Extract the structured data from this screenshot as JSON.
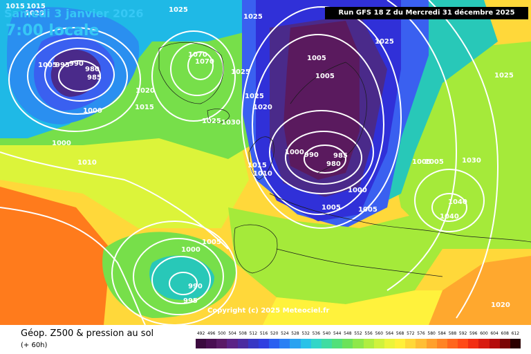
{
  "header": {
    "date_line": "Samedi 3 janvier 2026",
    "time_line": "7:00 locale",
    "run_info": "Run GFS 18 Z du Mercredi 31 décembre 2025"
  },
  "map": {
    "copyright": "Copyright (c) 2025 Meteociel.fr",
    "pressure_labels": [
      "1015",
      "1015",
      "1025",
      "1025",
      "1020",
      "1005",
      "995",
      "990",
      "980",
      "985",
      "1000",
      "1000",
      "1010",
      "1070",
      "1070",
      "1015",
      "1025",
      "1025",
      "1020",
      "1030",
      "1025",
      "1020",
      "1015",
      "1010",
      "1000",
      "990",
      "985",
      "980",
      "1000",
      "1005",
      "1005",
      "1005",
      "1005",
      "1025",
      "1030",
      "1040",
      "1040",
      "1025",
      "1020",
      "1005",
      "1000",
      "990",
      "995",
      "1005",
      "1005"
    ],
    "fill_colors": [
      "#ff7b1c",
      "#ffa82e",
      "#ffd83a",
      "#fff23c",
      "#dcf43a",
      "#a5ea3a",
      "#77df4a",
      "#4ad27a",
      "#28c8b8",
      "#1fb9e6",
      "#2a8ff0",
      "#3a60f0",
      "#3030d8",
      "#4a2a8a",
      "#5a1a5e"
    ]
  },
  "footer": {
    "title": "Géop. Z500 & pression au sol",
    "lead": "(+ 60h)",
    "scale_values": [
      "492",
      "496",
      "500",
      "504",
      "508",
      "512",
      "516",
      "520",
      "524",
      "528",
      "532",
      "536",
      "540",
      "544",
      "548",
      "552",
      "556",
      "560",
      "564",
      "568",
      "572",
      "576",
      "580",
      "584",
      "588",
      "592",
      "596",
      "600",
      "604",
      "608",
      "612"
    ],
    "scale_colors": [
      "#3b0a3e",
      "#4a0f52",
      "#5a1a66",
      "#5b2386",
      "#4b2ca0",
      "#3838c4",
      "#2f3fe0",
      "#2a5ff0",
      "#2a80f4",
      "#2aa2f0",
      "#28c2e8",
      "#32d6c8",
      "#40dca2",
      "#52e07a",
      "#6ce25a",
      "#8ee84a",
      "#b0ee40",
      "#d0f23c",
      "#ecf43a",
      "#fff03a",
      "#ffd838",
      "#ffbe34",
      "#ffa02c",
      "#ff8424",
      "#ff661c",
      "#ff4a16",
      "#f22e12",
      "#d81c10",
      "#b40c0c",
      "#7a0606",
      "#2a0000"
    ]
  }
}
